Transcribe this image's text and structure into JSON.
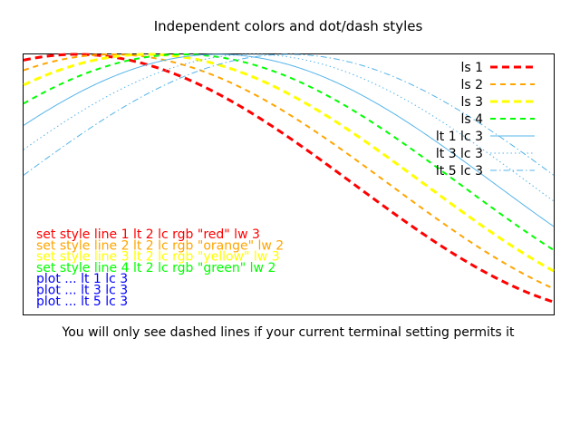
{
  "chart_data": {
    "type": "line",
    "title": "Independent colors and dot/dash styles",
    "xlim": [
      0,
      3
    ],
    "ylim": [
      -1,
      1
    ],
    "x_function": "cos",
    "grid": false,
    "legend_placement": "top-right",
    "series": [
      {
        "name": "ls 1",
        "phase": 0.3,
        "color": "#ff0000",
        "dash": "dashed",
        "width": 3
      },
      {
        "name": "ls 2",
        "phase": 0.5,
        "color": "#ffa500",
        "dash": "dashed",
        "width": 2
      },
      {
        "name": "ls 3",
        "phase": 0.7,
        "color": "#ffff00",
        "dash": "dashed",
        "width": 3
      },
      {
        "name": "ls 4",
        "phase": 0.9,
        "color": "#00ff00",
        "dash": "dashed",
        "width": 2
      },
      {
        "name": "lt 1 lc 3",
        "phase": 1.1,
        "color": "#56b4e9",
        "dash": "solid",
        "width": 1
      },
      {
        "name": "lt 3 lc 3",
        "phase": 1.3,
        "color": "#56b4e9",
        "dash": "dotted",
        "width": 1
      },
      {
        "name": "lt 5 lc 3",
        "phase": 1.5,
        "color": "#56b4e9",
        "dash": "dashdot",
        "width": 1
      }
    ],
    "annotations": [
      {
        "text": "set style line 1 lt 2 lc rgb \"red\" lw 3",
        "color": "#ff0000"
      },
      {
        "text": "set style line 2 lt 2 lc rgb \"orange\" lw 2",
        "color": "#ffa500"
      },
      {
        "text": "set style line 3 lt 2 lc rgb \"yellow\" lw 3",
        "color": "#ffff00"
      },
      {
        "text": "set style line 4 lt 2 lc rgb \"green\" lw 2",
        "color": "#00ff00"
      },
      {
        "text": "plot ... lt 1 lc 3",
        "color": "#0000ff"
      },
      {
        "text": "plot ... lt 3 lc 3",
        "color": "#0000ff"
      },
      {
        "text": "plot ... lt 5 lc 3",
        "color": "#0000ff"
      }
    ],
    "footnote": "You will only see dashed lines if your current terminal setting permits it"
  }
}
